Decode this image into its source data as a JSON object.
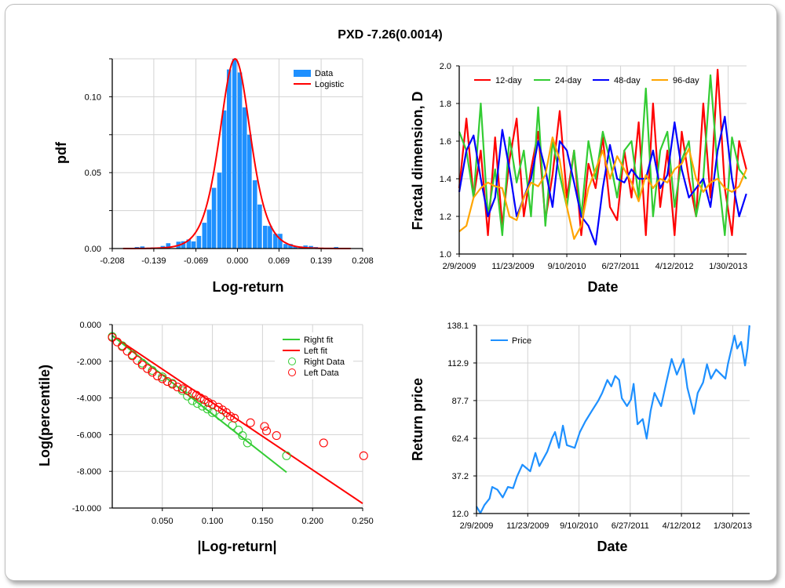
{
  "title": "PXD -7.26(0.0014)",
  "chart_data": [
    {
      "type": "bar",
      "xlabel": "Log-return",
      "ylabel": "pdf",
      "xlim": [
        -0.208,
        0.208
      ],
      "ylim": [
        0,
        0.125
      ],
      "xticks": [
        "-0.208",
        "-0.139",
        "-0.069",
        "0.000",
        "0.069",
        "0.139",
        "0.208"
      ],
      "yticks": [
        "0.00",
        "0.05",
        "0.10"
      ],
      "legend": [
        "Data",
        "Logistic"
      ],
      "legend_position": "top-right",
      "bin_width": 0.0086,
      "x": [
        -0.167,
        -0.158,
        -0.141,
        -0.124,
        -0.115,
        -0.098,
        -0.09,
        -0.081,
        -0.073,
        -0.064,
        -0.055,
        -0.047,
        -0.039,
        -0.03,
        -0.022,
        -0.014,
        -0.005,
        0.004,
        0.012,
        0.02,
        0.029,
        0.037,
        0.046,
        0.054,
        0.063,
        0.071,
        0.08,
        0.088,
        0.096,
        0.105,
        0.113,
        0.122,
        0.13,
        0.164
      ],
      "values": [
        0.001,
        0.0014,
        0.0007,
        0.0017,
        0.0035,
        0.0045,
        0.0048,
        0.006,
        0.0047,
        0.0083,
        0.017,
        0.0256,
        0.04,
        0.05,
        0.091,
        0.118,
        0.125,
        0.116,
        0.093,
        0.075,
        0.045,
        0.029,
        0.015,
        0.0148,
        0.0097,
        0.0097,
        0.003,
        0.003,
        0.0014,
        0.0014,
        0.002,
        0.0017,
        0.001,
        0.001
      ],
      "logistic_fit": {
        "mu": -0.004,
        "scale": 0.0172
      }
    },
    {
      "type": "line",
      "xlabel": "Date",
      "ylabel": "Fractal dimension, D",
      "ylim": [
        1.0,
        2.0
      ],
      "yticks": [
        "1.0",
        "1.2",
        "1.4",
        "1.6",
        "1.8",
        "2.0"
      ],
      "xticks": [
        "2/9/2009",
        "11/23/2009",
        "9/10/2010",
        "6/27/2011",
        "4/12/2012",
        "1/30/2013"
      ],
      "xtick_days": [
        0,
        287,
        574,
        861,
        1148,
        1435
      ],
      "xlim_days": [
        0,
        1533
      ],
      "legend_position": "top",
      "sample_step_days": 38.3,
      "series": [
        {
          "name": "12-day",
          "color": "#ff0000",
          "values": [
            1.35,
            1.72,
            1.3,
            1.55,
            1.1,
            1.62,
            1.15,
            1.5,
            1.72,
            1.2,
            1.45,
            1.65,
            1.18,
            1.42,
            1.76,
            1.3,
            1.55,
            1.1,
            1.48,
            1.35,
            1.62,
            1.25,
            1.18,
            1.55,
            1.3,
            1.7,
            1.1,
            1.8,
            1.25,
            1.55,
            1.1,
            1.65,
            1.4,
            1.2,
            1.8,
            1.3,
            1.98,
            1.35,
            1.1,
            1.6,
            1.45
          ]
        },
        {
          "name": "24-day",
          "color": "#33cc33",
          "values": [
            1.65,
            1.55,
            1.3,
            1.8,
            1.2,
            1.45,
            1.1,
            1.62,
            1.38,
            1.55,
            1.2,
            1.78,
            1.15,
            1.6,
            1.42,
            1.25,
            1.55,
            1.2,
            1.6,
            1.4,
            1.65,
            1.5,
            1.3,
            1.55,
            1.6,
            1.3,
            1.88,
            1.2,
            1.55,
            1.65,
            1.25,
            1.5,
            1.6,
            1.2,
            1.4,
            1.95,
            1.45,
            1.1,
            1.62,
            1.45,
            1.4
          ]
        },
        {
          "name": "48-day",
          "color": "#0000ff",
          "values": [
            1.33,
            1.55,
            1.63,
            1.4,
            1.2,
            1.3,
            1.66,
            1.45,
            1.2,
            1.3,
            1.4,
            1.6,
            1.45,
            1.25,
            1.6,
            1.55,
            1.38,
            1.2,
            1.15,
            1.05,
            1.35,
            1.58,
            1.4,
            1.38,
            1.45,
            1.4,
            1.4,
            1.55,
            1.35,
            1.42,
            1.7,
            1.45,
            1.3,
            1.35,
            1.4,
            1.25,
            1.55,
            1.73,
            1.4,
            1.2,
            1.32
          ]
        },
        {
          "name": "96-day",
          "color": "#ffa500",
          "values": [
            1.12,
            1.15,
            1.3,
            1.35,
            1.38,
            1.36,
            1.35,
            1.2,
            1.18,
            1.3,
            1.38,
            1.36,
            1.42,
            1.62,
            1.5,
            1.25,
            1.08,
            1.15,
            1.35,
            1.45,
            1.55,
            1.4,
            1.52,
            1.45,
            1.38,
            1.28,
            1.42,
            1.35,
            1.4,
            1.38,
            1.45,
            1.48,
            1.56,
            1.4,
            1.33,
            1.38,
            1.4,
            1.35,
            1.33,
            1.36,
            1.45
          ]
        }
      ]
    },
    {
      "type": "scatter",
      "xlabel": "|Log-return|",
      "ylabel": "Log(percentile)",
      "xlim": [
        0,
        0.25
      ],
      "ylim": [
        -10,
        0
      ],
      "xticks": [
        "0.050",
        "0.100",
        "0.150",
        "0.200",
        "0.250"
      ],
      "yticks": [
        "0.000",
        "-2.000",
        "-4.000",
        "-6.000",
        "-8.000",
        "-10.000"
      ],
      "legend": [
        "Right fit",
        "Left fit",
        "Right Data",
        "Left Data"
      ],
      "legend_position": "top-right",
      "right_fit": {
        "x": [
          0,
          0.174
        ],
        "y": [
          -0.6,
          -8.05
        ],
        "color": "#33cc33"
      },
      "left_fit": {
        "x": [
          0,
          0.25
        ],
        "y": [
          -0.6,
          -9.75
        ],
        "color": "#ff0000"
      },
      "right_data": {
        "color": "#33cc33",
        "x": [
          0,
          0.01,
          0.02,
          0.03,
          0.04,
          0.05,
          0.06,
          0.07,
          0.075,
          0.08,
          0.085,
          0.09,
          0.095,
          0.1,
          0.108,
          0.12,
          0.126,
          0.13,
          0.135,
          0.174
        ],
        "y": [
          -0.65,
          -1.15,
          -1.65,
          -2.1,
          -2.5,
          -2.85,
          -3.2,
          -3.6,
          -3.9,
          -4.15,
          -4.3,
          -4.45,
          -4.6,
          -4.8,
          -5.0,
          -5.5,
          -5.75,
          -6.05,
          -6.45,
          -7.15
        ]
      },
      "left_data": {
        "color": "#ff0000",
        "x": [
          0,
          0.005,
          0.01,
          0.015,
          0.02,
          0.025,
          0.03,
          0.035,
          0.04,
          0.045,
          0.05,
          0.055,
          0.06,
          0.065,
          0.07,
          0.075,
          0.08,
          0.084,
          0.088,
          0.092,
          0.096,
          0.1,
          0.106,
          0.11,
          0.114,
          0.118,
          0.122,
          0.138,
          0.152,
          0.154,
          0.164,
          0.211,
          0.251
        ],
        "y": [
          -0.7,
          -0.95,
          -1.2,
          -1.45,
          -1.7,
          -1.95,
          -2.2,
          -2.4,
          -2.6,
          -2.8,
          -2.95,
          -3.1,
          -3.25,
          -3.4,
          -3.5,
          -3.6,
          -3.75,
          -3.85,
          -4.0,
          -4.1,
          -4.25,
          -4.35,
          -4.5,
          -4.65,
          -4.8,
          -5.0,
          -5.1,
          -5.35,
          -5.55,
          -5.8,
          -6.05,
          -6.45,
          -7.15
        ]
      }
    },
    {
      "type": "line",
      "xlabel": "Date",
      "ylabel": "Return price",
      "ylim": [
        12.0,
        138.1
      ],
      "yticks": [
        "12.0",
        "37.2",
        "62.4",
        "87.7",
        "112.9",
        "138.1"
      ],
      "xticks": [
        "2/9/2009",
        "11/23/2009",
        "9/10/2010",
        "6/27/2011",
        "4/12/2012",
        "1/30/2013"
      ],
      "xtick_days": [
        0,
        287,
        574,
        861,
        1148,
        1435
      ],
      "xlim_days": [
        0,
        1530
      ],
      "legend": [
        "Price"
      ],
      "legend_position": "top-left",
      "series": [
        {
          "name": "Price",
          "color": "#1e90ff",
          "days": [
            0,
            22,
            44,
            73,
            88,
            117,
            147,
            176,
            205,
            227,
            257,
            301,
            330,
            352,
            396,
            425,
            440,
            462,
            484,
            506,
            550,
            579,
            609,
            645,
            682,
            704,
            733,
            755,
            777,
            799,
            814,
            843,
            865,
            880,
            902,
            931,
            953,
            975,
            997,
            1034,
            1063,
            1093,
            1122,
            1159,
            1181,
            1218,
            1239,
            1269,
            1291,
            1313,
            1342,
            1394,
            1408,
            1445,
            1460,
            1482,
            1504,
            1518,
            1529
          ],
          "values": [
            16.7,
            12.3,
            17.6,
            22,
            29.8,
            28,
            22.8,
            29.8,
            29,
            36.8,
            44.7,
            40.3,
            52.6,
            43.8,
            53.4,
            63,
            66.6,
            56,
            70.9,
            57.8,
            56,
            66.6,
            73.6,
            80.6,
            87.6,
            92.8,
            101.5,
            97.2,
            104.2,
            101.5,
            89.3,
            84,
            88.4,
            98.9,
            71.8,
            75.3,
            62.2,
            80.6,
            92.8,
            84,
            99.8,
            115.6,
            105.1,
            115.6,
            96.3,
            78.8,
            92.8,
            99.8,
            112,
            102.4,
            108.5,
            102.4,
            112,
            131.3,
            122.6,
            127,
            111.2,
            122.6,
            138.1
          ]
        }
      ]
    }
  ]
}
